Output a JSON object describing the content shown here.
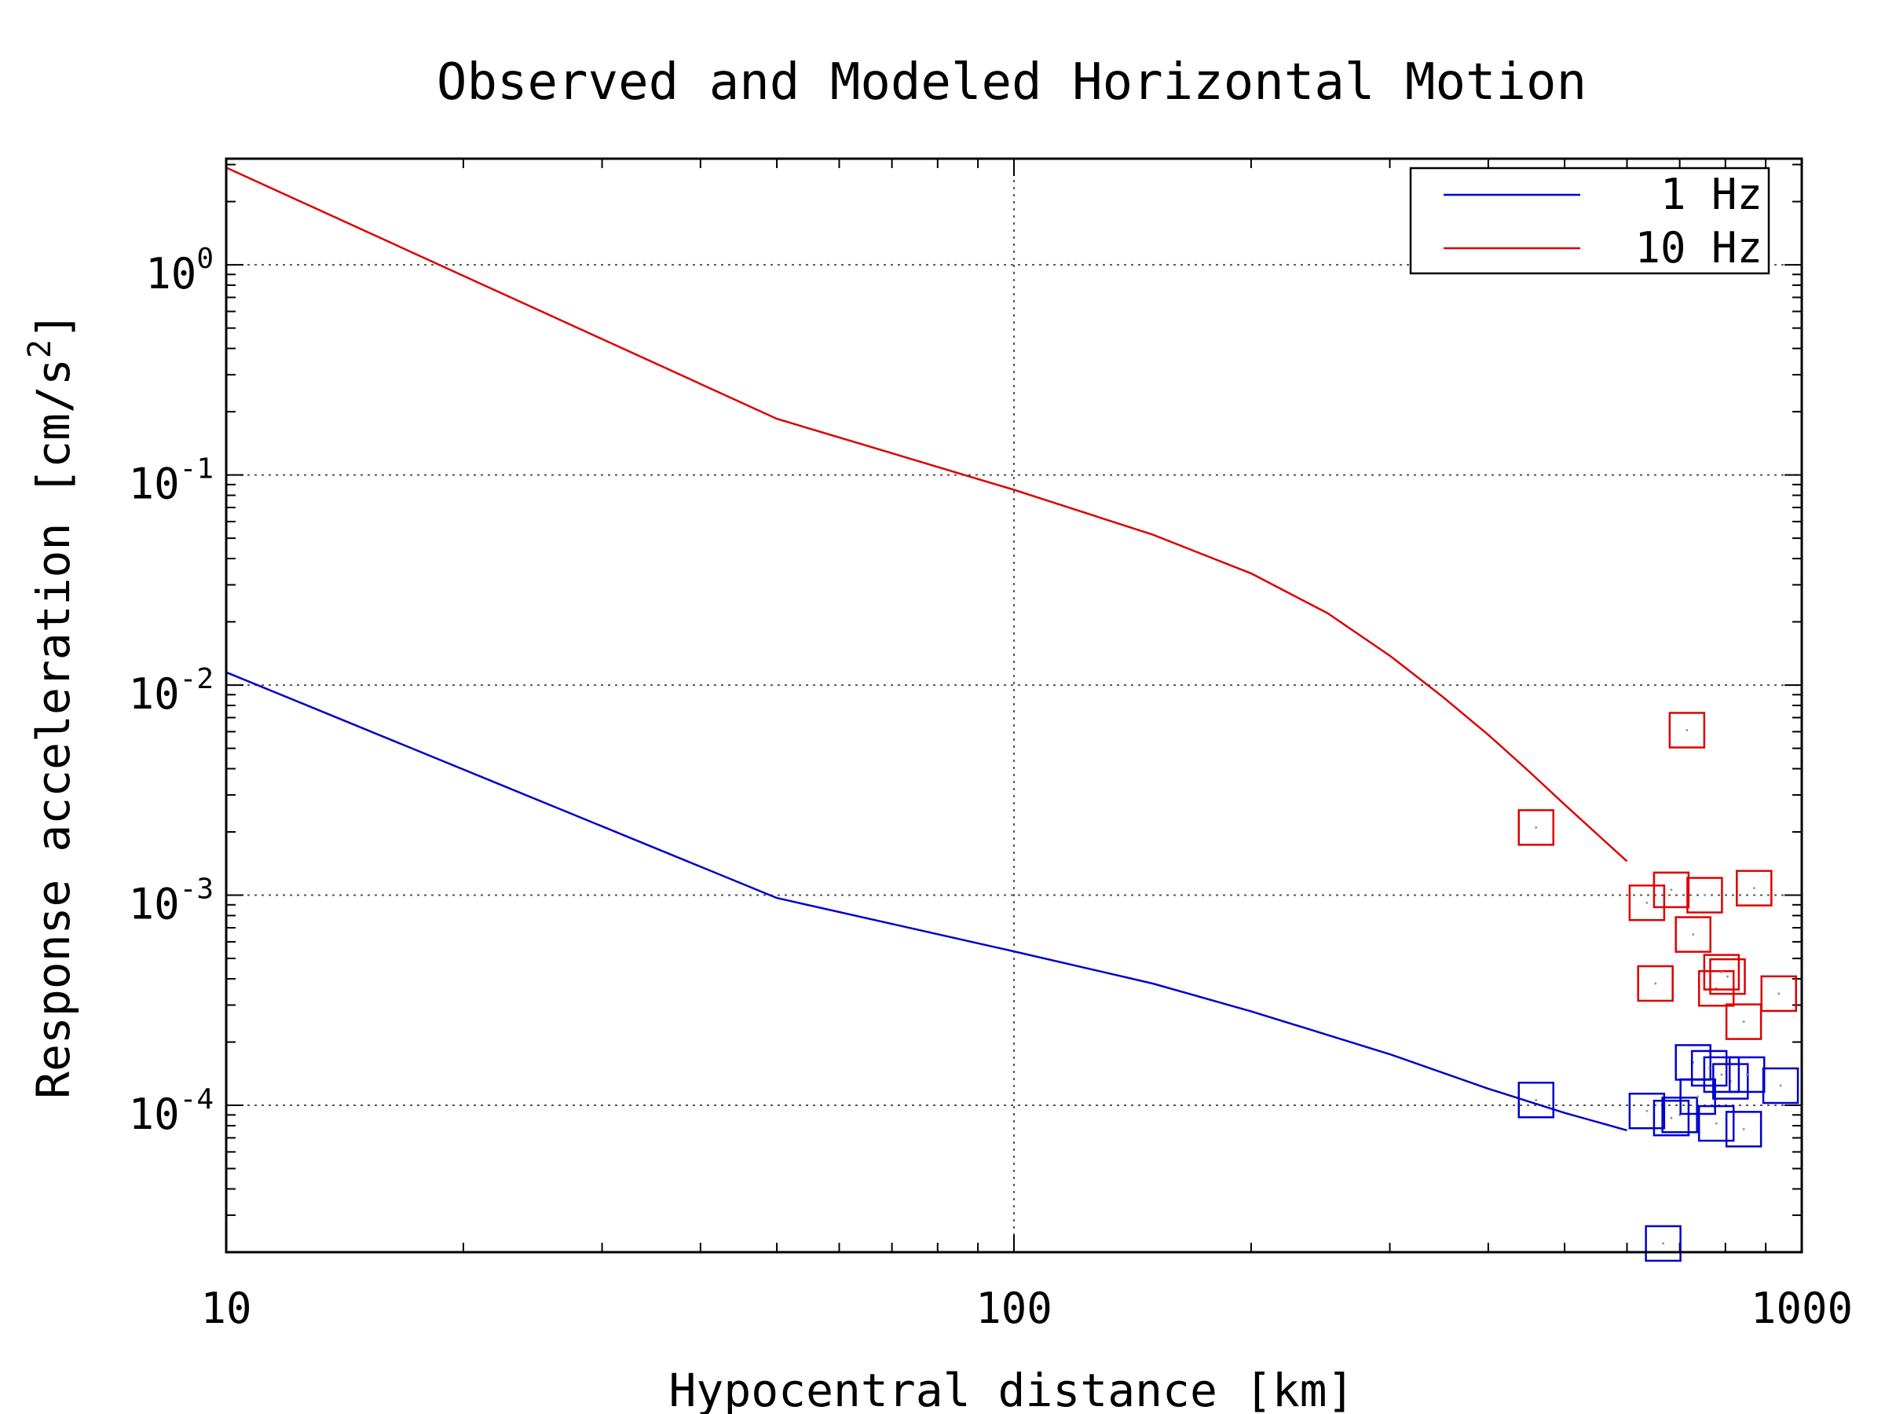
{
  "chart_data": {
    "type": "line",
    "title": "Observed and Modeled Horizontal Motion",
    "xlabel": "Hypocentral distance [km]",
    "ylabel": "Response acceleration [cm/s",
    "ylabel_sup": "2",
    "ylabel_end": "]",
    "xscale": "log",
    "yscale": "log",
    "xlim": [
      10,
      1000
    ],
    "ylim": [
      2e-05,
      3.2
    ],
    "grid": true,
    "legend_position": "top-right",
    "x_ticks": [
      {
        "value": 10,
        "label": "10"
      },
      {
        "value": 100,
        "label": "100"
      },
      {
        "value": 1000,
        "label": "1000"
      }
    ],
    "y_ticks": [
      {
        "value": 1,
        "base": "10",
        "exp": "0"
      },
      {
        "value": 0.1,
        "base": "10",
        "exp": "-1"
      },
      {
        "value": 0.01,
        "base": "10",
        "exp": "-2"
      },
      {
        "value": 0.001,
        "base": "10",
        "exp": "-3"
      },
      {
        "value": 0.0001,
        "base": "10",
        "exp": "-4"
      }
    ],
    "series": [
      {
        "name": "1 Hz",
        "color": "#0000cc",
        "x": [
          10,
          50,
          100,
          150,
          200,
          300,
          400,
          500,
          600
        ],
        "y": [
          0.0115,
          0.00097,
          0.00054,
          0.00038,
          0.00028,
          0.000175,
          0.00012,
          9.2e-05,
          7.6e-05
        ]
      },
      {
        "name": "10 Hz",
        "color": "#dd0000",
        "x": [
          10,
          50,
          100,
          150,
          200,
          250,
          300,
          350,
          400,
          450,
          500,
          550,
          600
        ],
        "y": [
          2.9,
          0.185,
          0.085,
          0.052,
          0.034,
          0.022,
          0.0138,
          0.0088,
          0.0058,
          0.0039,
          0.0027,
          0.00195,
          0.00145
        ]
      }
    ],
    "observed": [
      {
        "name": "1 Hz",
        "color": "#0000cc",
        "points": [
          [
            460,
            0.000106
          ],
          [
            636,
            9.4e-05
          ],
          [
            667,
            2.2e-05
          ],
          [
            683,
            8.7e-05
          ],
          [
            700,
            9e-05
          ],
          [
            728,
            0.00016
          ],
          [
            738,
            0.00011
          ],
          [
            763,
            0.00015
          ],
          [
            779,
            8.2e-05
          ],
          [
            791,
            0.00014
          ],
          [
            812,
            0.00013
          ],
          [
            844,
            7.7e-05
          ],
          [
            852,
            0.00014
          ],
          [
            940,
            0.000124
          ]
        ]
      },
      {
        "name": "10 Hz",
        "color": "#dd0000",
        "points": [
          [
            460,
            0.0021
          ],
          [
            636,
            0.00092
          ],
          [
            652,
            0.00038
          ],
          [
            683,
            0.00106
          ],
          [
            715,
            0.0061
          ],
          [
            728,
            0.00065
          ],
          [
            753,
            0.001
          ],
          [
            779,
            0.00036
          ],
          [
            791,
            0.00043
          ],
          [
            805,
            0.00041
          ],
          [
            844,
            0.00025
          ],
          [
            870,
            0.00108
          ],
          [
            935,
            0.00034
          ]
        ]
      }
    ]
  }
}
